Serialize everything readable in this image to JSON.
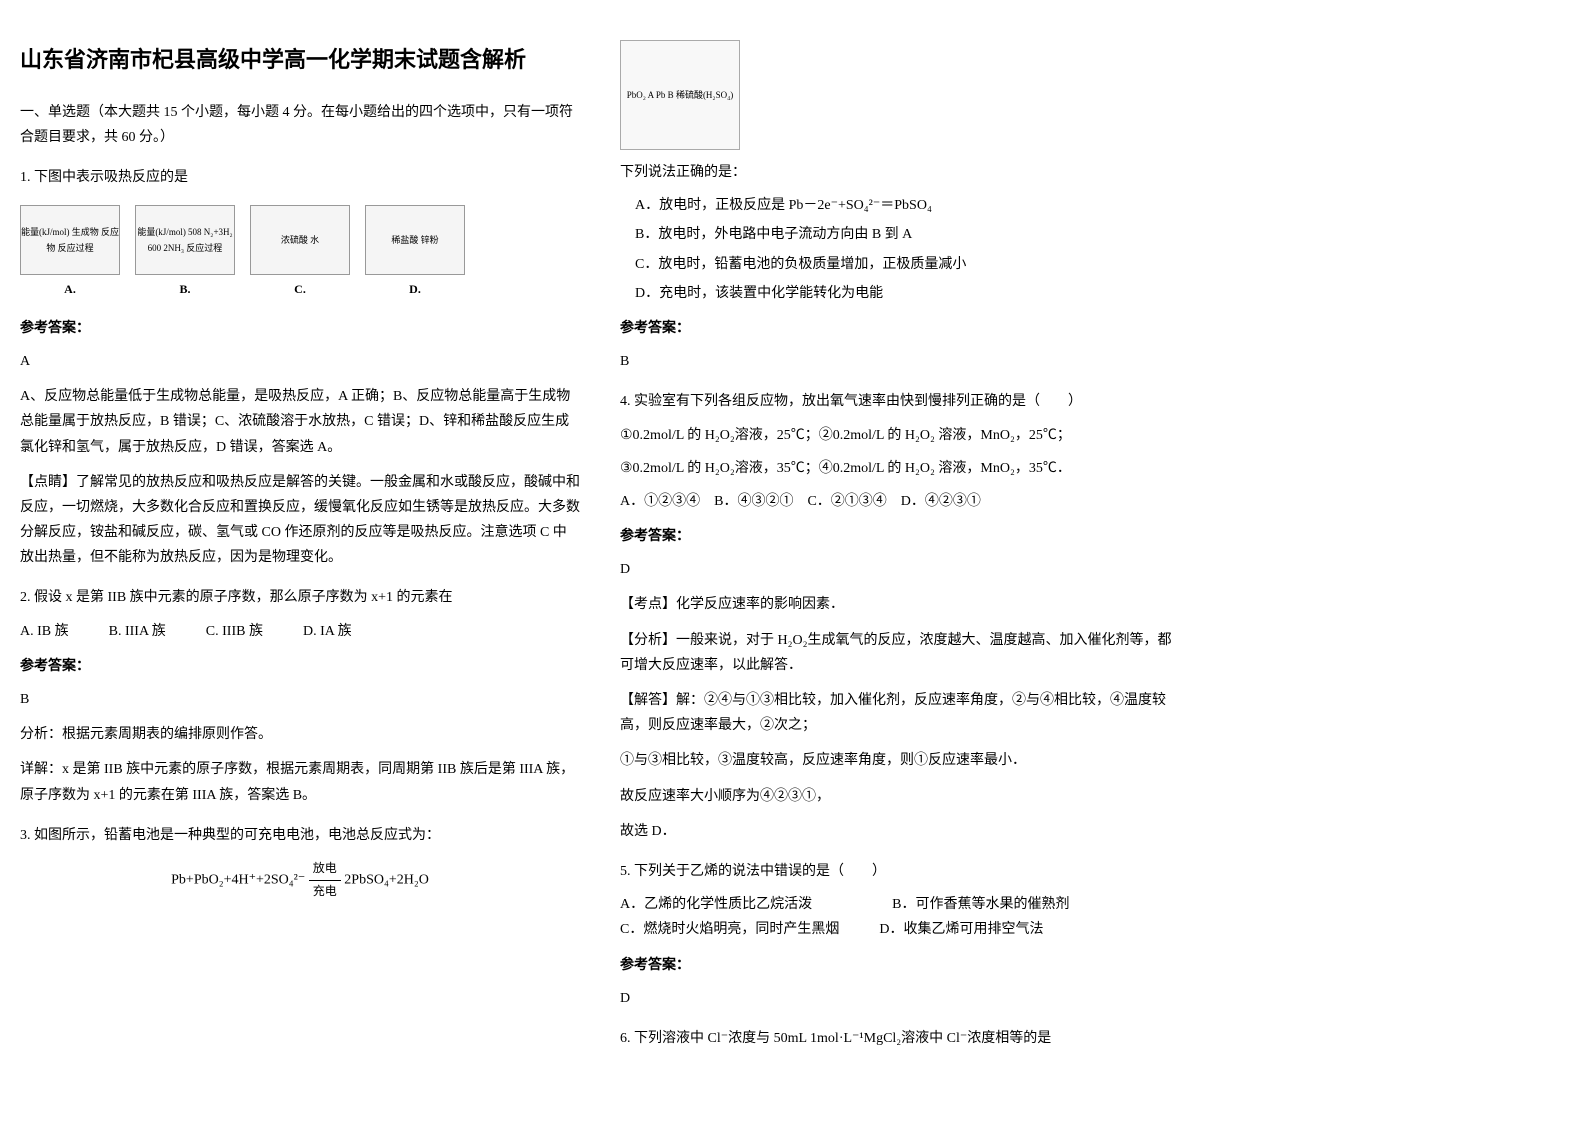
{
  "title": "山东省济南市杞县高级中学高一化学期末试题含解析",
  "section1": {
    "header": "一、单选题（本大题共 15 个小题，每小题 4 分。在每小题给出的四个选项中，只有一项符合题目要求，共 60 分。）"
  },
  "q1": {
    "text": "1. 下图中表示吸热反应的是",
    "diagA": "能量(kJ/mol) 生成物 反应物 反应过程",
    "diagB": "能量(kJ/mol) 508 N₂+3H₂ 600 2NH₃ 反应过程",
    "diagC": "浓硫酸 水",
    "diagD": "稀盐酸 锌粉",
    "labelA": "A.",
    "labelB": "B.",
    "labelC": "C.",
    "labelD": "D.",
    "answer_label": "参考答案：",
    "answer": "A",
    "explanation1": "A、反应物总能量低于生成物总能量，是吸热反应，A 正确；B、反应物总能量高于生成物总能量属于放热反应，B 错误；C、浓硫酸溶于水放热，C 错误；D、锌和稀盐酸反应生成氯化锌和氢气，属于放热反应，D 错误，答案选 A。",
    "explanation2": "【点睛】了解常见的放热反应和吸热反应是解答的关键。一般金属和水或酸反应，酸碱中和反应，一切燃烧，大多数化合反应和置换反应，缓慢氧化反应如生锈等是放热反应。大多数分解反应，铵盐和碱反应，碳、氢气或 CO 作还原剂的反应等是吸热反应。注意选项 C 中放出热量，但不能称为放热反应，因为是物理变化。"
  },
  "q2": {
    "text": "2. 假设 x 是第 IIB 族中元素的原子序数，那么原子序数为 x+1 的元素在",
    "optA": "A. IB 族",
    "optB": "B. IIIA 族",
    "optC": "C. IIIB 族",
    "optD": "D. IA 族",
    "answer_label": "参考答案：",
    "answer": "B",
    "analysis": "分析：根据元素周期表的编排原则作答。",
    "detail": "详解：x 是第 IIB 族中元素的原子序数，根据元素周期表，同周期第 IIB 族后是第 IIIA 族，原子序数为 x+1 的元素在第 IIIA 族，答案选 B。"
  },
  "q3": {
    "text": "3. 如图所示，铅蓄电池是一种典型的可充电电池，电池总反应式为：",
    "formula_left": "Pb+PbO₂+4H⁺+2SO₄²⁻",
    "formula_top": "放电",
    "formula_bottom": "充电",
    "formula_right": "2PbSO₄+2H₂O",
    "diagram_label": "PbO₂ A Pb B 稀硫酸(H₂SO₄)",
    "followup": "下列说法正确的是：",
    "optA": "A．放电时，正极反应是 Pb－2e⁻+SO₄²⁻＝PbSO₄",
    "optB": "B．放电时，外电路中电子流动方向由 B 到 A",
    "optC": "C．放电时，铅蓄电池的负极质量增加，正极质量减小",
    "optD": "D．充电时，该装置中化学能转化为电能",
    "answer_label": "参考答案：",
    "answer": "B"
  },
  "q4": {
    "text": "4. 实验室有下列各组反应物，放出氧气速率由快到慢排列正确的是（　　）",
    "line1": "①0.2mol/L 的 H₂O₂溶液，25℃；②0.2mol/L 的 H₂O₂ 溶液，MnO₂，25℃；",
    "line2": "③0.2mol/L 的 H₂O₂溶液，35℃；④0.2mol/L 的 H₂O₂ 溶液，MnO₂，35℃．",
    "options": "A．①②③④　B．④③②①　C．②①③④　D．④②③①",
    "answer_label": "参考答案：",
    "answer": "D",
    "point": "【考点】化学反应速率的影响因素．",
    "analysis": "【分析】一般来说，对于 H₂O₂生成氧气的反应，浓度越大、温度越高、加入催化剂等，都可增大反应速率，以此解答．",
    "solve1": "【解答】解：②④与①③相比较，加入催化剂，反应速率角度，②与④相比较，④温度较高，则反应速率最大，②次之；",
    "solve2": "①与③相比较，③温度较高，反应速率角度，则①反应速率最小．",
    "solve3": "故反应速率大小顺序为④②③①，",
    "solve4": "故选 D．"
  },
  "q5": {
    "text": "5. 下列关于乙烯的说法中错误的是（　　）",
    "optA": "A．乙烯的化学性质比乙烷活泼",
    "optB": "B．可作香蕉等水果的催熟剂",
    "optC": "C．燃烧时火焰明亮，同时产生黑烟",
    "optD": "D．收集乙烯可用排空气法",
    "answer_label": "参考答案：",
    "answer": "D"
  },
  "q6": {
    "text": "6. 下列溶液中 Cl⁻浓度与 50mL 1mol·L⁻¹MgCl₂溶液中 Cl⁻浓度相等的是"
  }
}
